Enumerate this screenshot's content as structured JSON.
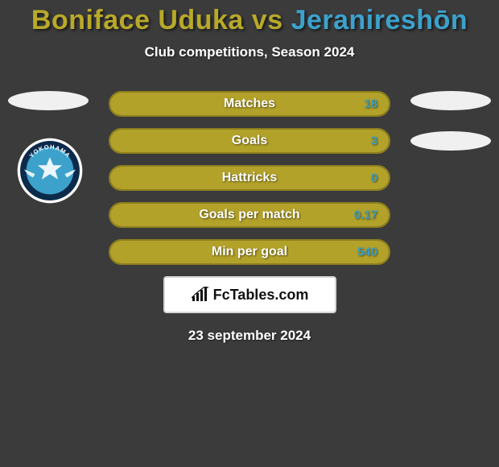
{
  "header": {
    "player1": "Boniface Uduka",
    "vs": "vs",
    "player2": "Jeranireshōn",
    "player1_color": "#b8a92a",
    "vs_color": "#b8a92a",
    "player2_color": "#3ca2cc",
    "subtitle": "Club competitions, Season 2024"
  },
  "bar_style": {
    "fill_color": "#b3a22a",
    "border_color": "#8e7f1c",
    "border_radius": 16,
    "height": 32,
    "label_color": "#ffffff",
    "value_color": "#38a0c6",
    "font_size": 16
  },
  "stats": [
    {
      "label": "Matches",
      "value": "18",
      "fill_pct": 100
    },
    {
      "label": "Goals",
      "value": "3",
      "fill_pct": 100
    },
    {
      "label": "Hattricks",
      "value": "0",
      "fill_pct": 100
    },
    {
      "label": "Goals per match",
      "value": "0.17",
      "fill_pct": 100
    },
    {
      "label": "Min per goal",
      "value": "540",
      "fill_pct": 100
    }
  ],
  "brand": {
    "text": "FcTables.com"
  },
  "date": "23 september 2024",
  "badge": {
    "outer_color": "#ffffff",
    "ring_color": "#0c2a4a",
    "mid_color": "#3ca2cc",
    "text": "YOKOHAMA"
  },
  "colors": {
    "background": "#3b3b3b",
    "ellipse": "#f0f0f0"
  }
}
